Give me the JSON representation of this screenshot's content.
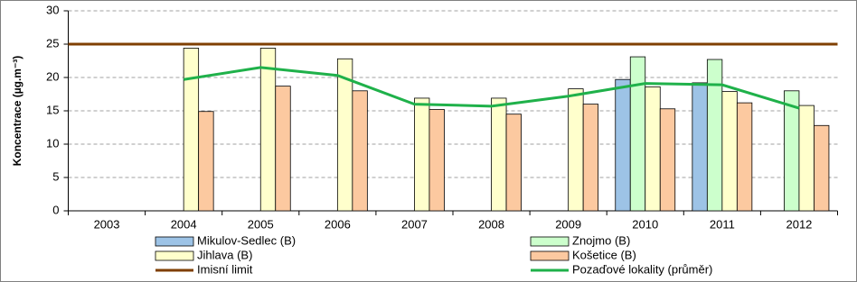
{
  "chart_data": {
    "type": "bar",
    "y_label": "Koncentrace (µg.m⁻³)",
    "categories": [
      "2003",
      "2004",
      "2005",
      "2006",
      "2007",
      "2008",
      "2009",
      "2010",
      "2011",
      "2012"
    ],
    "series": [
      {
        "name": "Mikulov-Sedlec (B)",
        "color": "#9dc3e6",
        "values": [
          null,
          null,
          null,
          null,
          null,
          null,
          null,
          19.7,
          19.2,
          null
        ]
      },
      {
        "name": "Znojmo (B)",
        "color": "#ccffcc",
        "values": [
          null,
          null,
          null,
          null,
          null,
          null,
          null,
          23.1,
          22.7,
          18.0
        ]
      },
      {
        "name": "Jihlava (B)",
        "color": "#ffffcc",
        "values": [
          null,
          24.4,
          24.4,
          22.8,
          16.9,
          16.9,
          18.3,
          18.6,
          17.9,
          15.8
        ]
      },
      {
        "name": "Košetice (B)",
        "color": "#fcc9a0",
        "values": [
          null,
          14.9,
          18.7,
          18.0,
          15.2,
          14.5,
          16.0,
          15.3,
          16.2,
          12.8
        ]
      }
    ],
    "limit": {
      "name": "Imisní limit",
      "color": "#7f3f00",
      "value": 25
    },
    "average": {
      "name": "Pozaďové lokality (průměr)",
      "color": "#1fb14a",
      "values": [
        null,
        19.7,
        21.5,
        20.3,
        16.0,
        15.7,
        17.2,
        19.1,
        18.9,
        15.4
      ]
    },
    "ylim": [
      0,
      30
    ],
    "yticks": [
      0,
      5,
      10,
      15,
      20,
      25,
      30
    ],
    "grid": true
  }
}
